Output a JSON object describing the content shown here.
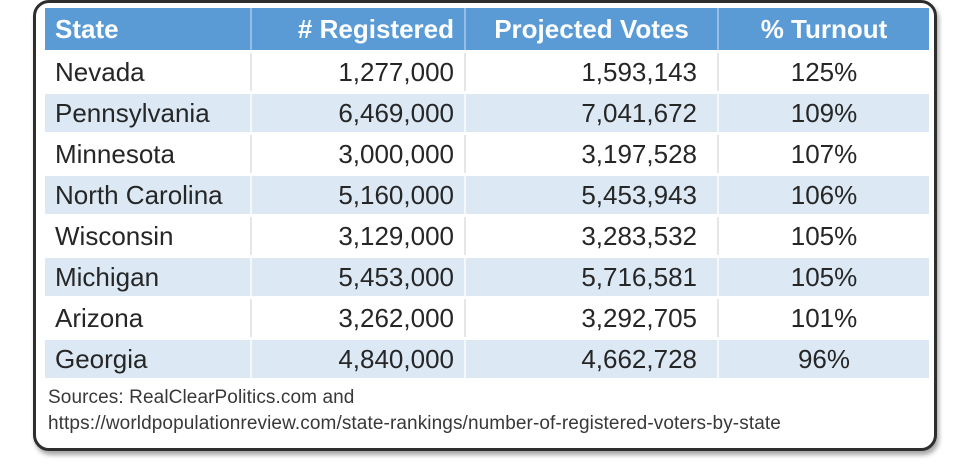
{
  "colors": {
    "header_bg": "#5B9BD5",
    "header_text": "#FDFEFF",
    "band_bg": "#DCE9F5",
    "body_text": "#262626",
    "border": "#2E2E2E"
  },
  "table": {
    "columns": [
      {
        "label": "State"
      },
      {
        "label": "# Registered"
      },
      {
        "label": "Projected Votes"
      },
      {
        "label": "% Turnout"
      }
    ],
    "rows": [
      {
        "state": "Nevada",
        "registered": "1,277,000",
        "projected": "1,593,143",
        "turnout": "125%"
      },
      {
        "state": "Pennsylvania",
        "registered": "6,469,000",
        "projected": "7,041,672",
        "turnout": "109%"
      },
      {
        "state": "Minnesota",
        "registered": "3,000,000",
        "projected": "3,197,528",
        "turnout": "107%"
      },
      {
        "state": "North Carolina",
        "registered": "5,160,000",
        "projected": "5,453,943",
        "turnout": "106%"
      },
      {
        "state": "Wisconsin",
        "registered": "3,129,000",
        "projected": "3,283,532",
        "turnout": "105%"
      },
      {
        "state": "Michigan",
        "registered": "5,453,000",
        "projected": "5,716,581",
        "turnout": "105%"
      },
      {
        "state": "Arizona",
        "registered": "3,262,000",
        "projected": "3,292,705",
        "turnout": "101%"
      },
      {
        "state": "Georgia",
        "registered": "4,840,000",
        "projected": "4,662,728",
        "turnout": "96%"
      }
    ],
    "source_line1": "Sources: RealClearPolitics.com and",
    "source_line2": "https://worldpopulationreview.com/state-rankings/number-of-registered-voters-by-state"
  },
  "chart_data": {
    "type": "table",
    "columns": [
      "State",
      "# Registered",
      "Projected Votes",
      "% Turnout"
    ],
    "rows": [
      [
        "Nevada",
        1277000,
        1593143,
        125
      ],
      [
        "Pennsylvania",
        6469000,
        7041672,
        109
      ],
      [
        "Minnesota",
        3000000,
        3197528,
        107
      ],
      [
        "North Carolina",
        5160000,
        5453943,
        106
      ],
      [
        "Wisconsin",
        3129000,
        3283532,
        105
      ],
      [
        "Michigan",
        5453000,
        5716581,
        105
      ],
      [
        "Arizona",
        3262000,
        3292705,
        101
      ],
      [
        "Georgia",
        4840000,
        4662728,
        96
      ]
    ],
    "turnout_unit": "%",
    "notes": "Sources: RealClearPolitics.com and https://worldpopulationreview.com/state-rankings/number-of-registered-voters-by-state"
  }
}
